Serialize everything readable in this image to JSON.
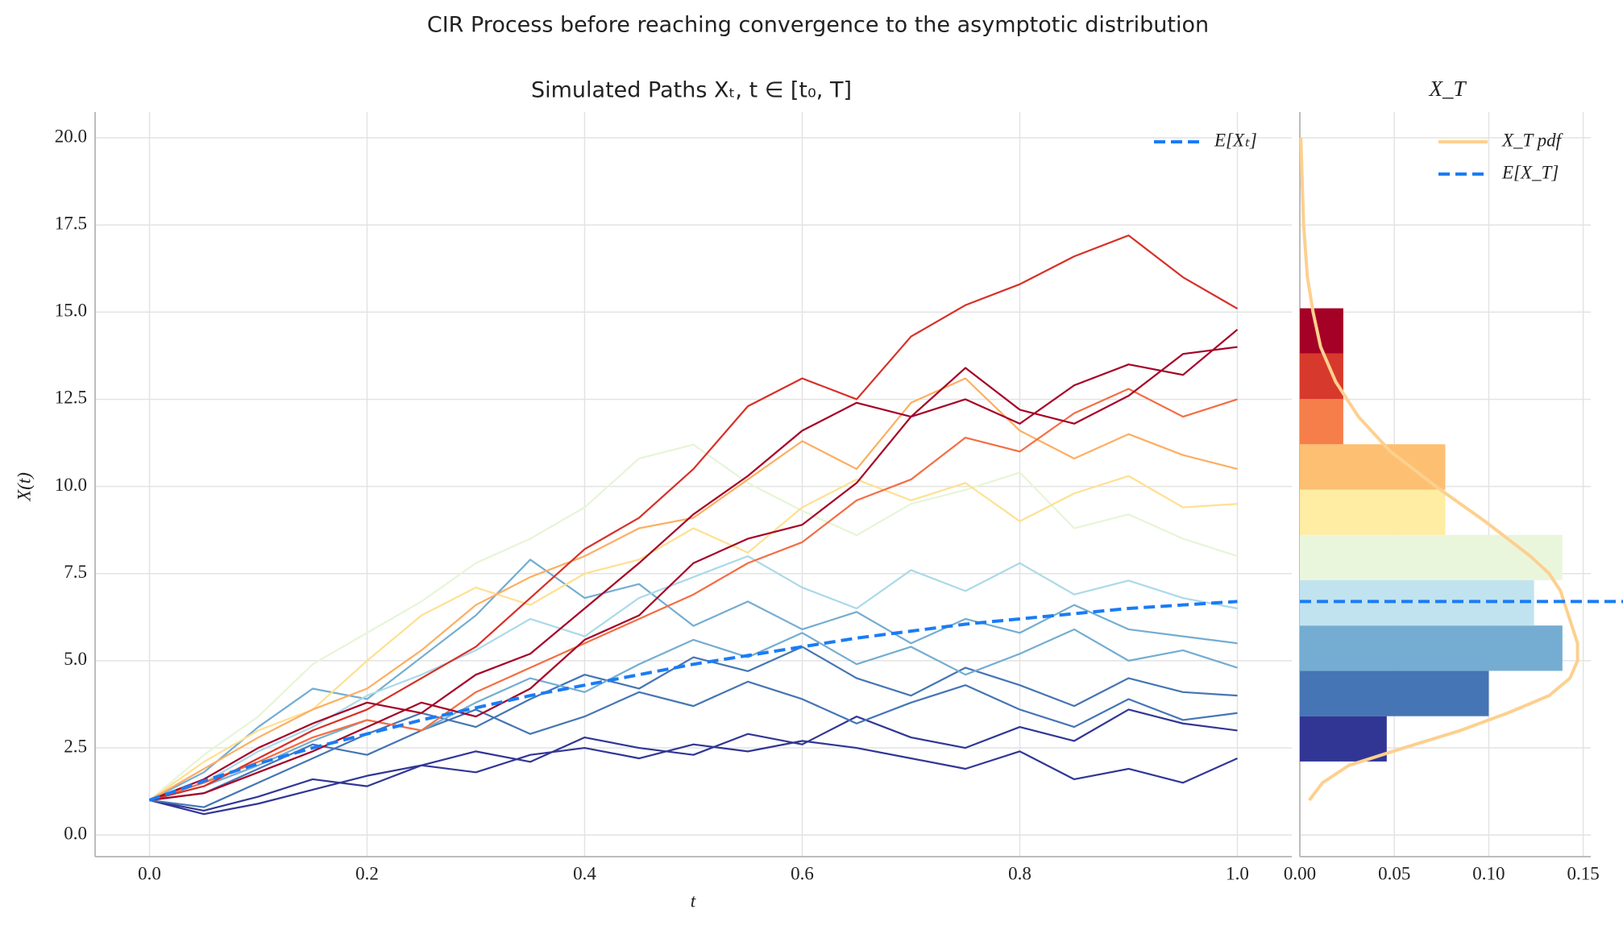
{
  "chart_data": [
    {
      "type": "line",
      "suptitle": "CIR Process before reaching convergence to the asymptotic distribution",
      "title": "Simulated Paths Xₜ, t ∈ [t₀, T]",
      "xlabel": "t",
      "ylabel": "X(t)",
      "x": [
        0,
        0.05,
        0.1,
        0.15,
        0.2,
        0.25,
        0.3,
        0.35,
        0.4,
        0.45,
        0.5,
        0.55,
        0.6,
        0.65,
        0.7,
        0.75,
        0.8,
        0.85,
        0.9,
        0.95,
        1.0
      ],
      "xlim": [
        -0.05,
        1.05
      ],
      "ylim": [
        -0.62,
        20.74
      ],
      "xticks": [
        {
          "value": 0,
          "label": "0.0"
        },
        0.2,
        0.4,
        0.6,
        0.8,
        {
          "value": 1,
          "label": "1.0"
        }
      ],
      "yticks": [
        {
          "value": 0,
          "label": "0.0"
        },
        2.5,
        {
          "value": 5,
          "label": "5.0"
        },
        7.5,
        {
          "value": 10,
          "label": "10.0"
        },
        12.5,
        {
          "value": 15,
          "label": "15.0"
        },
        17.5,
        {
          "value": 20,
          "label": "20.0"
        }
      ],
      "grid": true,
      "legend": "upper right",
      "series": [
        {
          "color": "#313695",
          "values": [
            1,
            0.6,
            0.9,
            1.3,
            1.7,
            2.0,
            1.8,
            2.3,
            2.5,
            2.2,
            2.6,
            2.4,
            2.7,
            2.5,
            2.2,
            1.9,
            2.4,
            1.6,
            1.9,
            1.5,
            2.2
          ]
        },
        {
          "color": "#313695",
          "values": [
            1,
            0.7,
            1.1,
            1.6,
            1.4,
            2.0,
            2.4,
            2.1,
            2.8,
            2.5,
            2.3,
            2.9,
            2.6,
            3.4,
            2.8,
            2.5,
            3.1,
            2.7,
            3.6,
            3.2,
            3.0
          ]
        },
        {
          "color": "#4575b4",
          "values": [
            1,
            1.2,
            1.9,
            2.6,
            2.3,
            3.0,
            3.6,
            2.9,
            3.4,
            4.1,
            3.7,
            4.4,
            3.9,
            3.2,
            3.8,
            4.3,
            3.6,
            3.1,
            3.9,
            3.3,
            3.5
          ]
        },
        {
          "color": "#4575b4",
          "values": [
            1,
            0.8,
            1.5,
            2.2,
            2.9,
            3.5,
            3.1,
            3.9,
            4.6,
            4.2,
            5.1,
            4.7,
            5.4,
            4.5,
            4.0,
            4.8,
            4.3,
            3.7,
            4.5,
            4.1,
            4.0
          ]
        },
        {
          "color": "#74add1",
          "values": [
            1,
            1.4,
            2.0,
            2.7,
            3.3,
            3.0,
            3.8,
            4.5,
            4.1,
            4.9,
            5.6,
            5.1,
            5.8,
            4.9,
            5.4,
            4.6,
            5.2,
            5.9,
            5.0,
            5.3,
            4.8
          ]
        },
        {
          "color": "#74add1",
          "values": [
            1,
            1.8,
            3.1,
            4.2,
            3.9,
            5.1,
            6.3,
            7.9,
            6.8,
            7.2,
            6.0,
            6.7,
            5.9,
            6.4,
            5.5,
            6.2,
            5.8,
            6.6,
            5.9,
            5.7,
            5.5
          ]
        },
        {
          "color": "#abd9e9",
          "values": [
            1,
            1.5,
            2.4,
            3.1,
            4.0,
            4.6,
            5.3,
            6.2,
            5.7,
            6.8,
            7.4,
            8.0,
            7.1,
            6.5,
            7.6,
            7.0,
            7.8,
            6.9,
            7.3,
            6.8,
            6.5
          ]
        },
        {
          "color": "#e6f5d6",
          "values": [
            1,
            2.3,
            3.4,
            4.9,
            5.8,
            6.7,
            7.8,
            8.5,
            9.4,
            10.8,
            11.2,
            10.1,
            9.3,
            8.6,
            9.5,
            9.9,
            10.4,
            8.8,
            9.2,
            8.5,
            8.0
          ]
        },
        {
          "color": "#fee090",
          "values": [
            1,
            2.1,
            3.0,
            3.6,
            5.0,
            6.3,
            7.1,
            6.6,
            7.5,
            7.9,
            8.8,
            8.1,
            9.4,
            10.2,
            9.6,
            10.1,
            9.0,
            9.8,
            10.3,
            9.4,
            9.5
          ]
        },
        {
          "color": "#fdae61",
          "values": [
            1,
            1.9,
            2.8,
            3.6,
            4.2,
            5.3,
            6.6,
            7.4,
            8.0,
            8.8,
            9.1,
            10.2,
            11.3,
            10.5,
            12.4,
            13.1,
            11.6,
            10.8,
            11.5,
            10.9,
            10.5
          ]
        },
        {
          "color": "#f46d43",
          "values": [
            1,
            1.5,
            2.1,
            2.8,
            3.3,
            3.0,
            4.1,
            4.8,
            5.5,
            6.2,
            6.9,
            7.8,
            8.4,
            9.6,
            10.2,
            11.4,
            11.0,
            12.1,
            12.8,
            12.0,
            12.5
          ]
        },
        {
          "color": "#a50026",
          "values": [
            1,
            1.2,
            1.8,
            2.4,
            3.1,
            3.8,
            3.4,
            4.2,
            5.6,
            6.3,
            7.8,
            8.5,
            8.9,
            10.1,
            12.0,
            13.4,
            12.2,
            11.8,
            12.6,
            13.8,
            14.0
          ]
        },
        {
          "color": "#d73027",
          "values": [
            1,
            1.4,
            2.2,
            3.0,
            3.6,
            4.5,
            5.4,
            6.8,
            8.2,
            9.1,
            10.5,
            12.3,
            13.1,
            12.5,
            14.3,
            15.2,
            15.8,
            16.6,
            17.2,
            16.0,
            15.1
          ]
        },
        {
          "color": "#a50026",
          "values": [
            1,
            1.6,
            2.5,
            3.2,
            3.8,
            3.5,
            4.6,
            5.2,
            6.5,
            7.8,
            9.2,
            10.3,
            11.6,
            12.4,
            12.0,
            12.5,
            11.8,
            12.9,
            13.5,
            13.2,
            14.5
          ]
        },
        {
          "name": "E[Xₜ]",
          "color": "#1a7cf5",
          "dashed": true,
          "values": [
            1,
            1.55,
            2.05,
            2.5,
            2.9,
            3.3,
            3.65,
            4.0,
            4.3,
            4.6,
            4.9,
            5.15,
            5.4,
            5.65,
            5.85,
            6.05,
            6.2,
            6.35,
            6.5,
            6.6,
            6.7
          ]
        }
      ]
    },
    {
      "type": "histogram",
      "orientation": "horizontal",
      "title": "X_T",
      "bins": [
        2.11,
        3.41,
        4.71,
        6.01,
        7.31,
        8.61,
        9.91,
        11.21,
        12.51,
        13.81,
        15.11
      ],
      "values": [
        0.046,
        0.1,
        0.139,
        0.124,
        0.139,
        0.077,
        0.077,
        0.023,
        0.023,
        0.023
      ],
      "colors": [
        "#313695",
        "#4575b4",
        "#74add1",
        "#c1e3f0",
        "#eaf6dc",
        "#feeda2",
        "#fdbf71",
        "#f67e4b",
        "#d73a2c",
        "#a50026"
      ],
      "xlim": [
        0,
        0.154
      ],
      "ylim": [
        -0.62,
        20.74
      ],
      "xticks": [
        {
          "value": 0,
          "label": "0.00"
        },
        0.05,
        {
          "value": 0.1,
          "label": "0.10"
        },
        {
          "value": 0.15,
          "label": "0.15"
        }
      ],
      "grid": true,
      "legend": "upper right",
      "pdf": {
        "name": "X_T pdf",
        "color": "#fdd08f",
        "y": [
          1,
          1.5,
          2,
          2.5,
          3,
          3.5,
          4,
          4.5,
          5,
          5.5,
          6,
          7,
          7.5,
          8,
          9,
          10,
          11,
          12,
          13,
          14,
          15,
          16,
          17.5,
          20
        ],
        "values": [
          0.005,
          0.012,
          0.026,
          0.055,
          0.085,
          0.11,
          0.132,
          0.143,
          0.147,
          0.147,
          0.144,
          0.138,
          0.132,
          0.122,
          0.098,
          0.072,
          0.048,
          0.031,
          0.019,
          0.011,
          0.007,
          0.004,
          0.002,
          0.0005
        ]
      },
      "mean_line": {
        "name": "E[X_T]",
        "color": "#1a7cf5",
        "value": 6.7
      }
    }
  ]
}
